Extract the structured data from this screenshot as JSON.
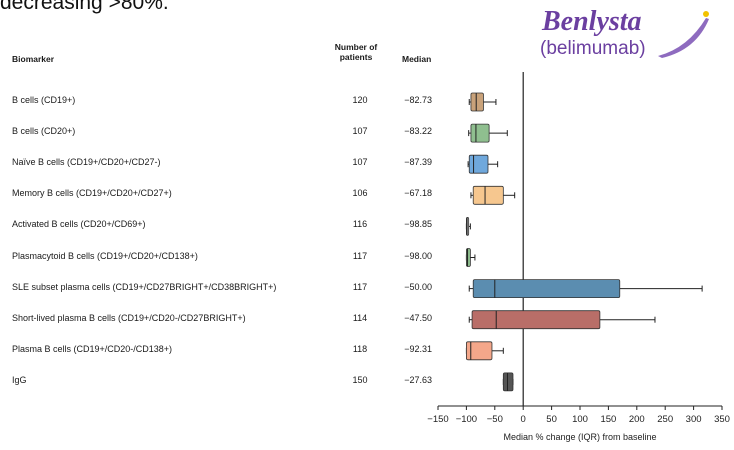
{
  "heading": "decreasing >80%.",
  "logo": {
    "brand": "Benlysta",
    "generic": "(belimumab)",
    "color": "#6b3fa0"
  },
  "table_headers": {
    "biomarker": "Biomarker",
    "n": "Number of patients",
    "median": "Median"
  },
  "chart_data": {
    "type": "box",
    "xlabel": "Median % change (IQR) from baseline",
    "xlim": [
      -150,
      350
    ],
    "xticks": [
      -150,
      -100,
      -50,
      0,
      50,
      100,
      150,
      200,
      250,
      300,
      350
    ],
    "reference_line": 0,
    "rows": [
      {
        "biomarker": "B cells (CD19+)",
        "n": "120",
        "median_label": "−82.73",
        "median": -82.73,
        "q1": -92,
        "q3": -70,
        "whisker_lo": -95,
        "whisker_hi": -48,
        "color": "#c9a27a"
      },
      {
        "biomarker": "B cells (CD20+)",
        "n": "107",
        "median_label": "−83.22",
        "median": -83.22,
        "q1": -92,
        "q3": -60,
        "whisker_lo": -96,
        "whisker_hi": -28,
        "color": "#8fbf8f"
      },
      {
        "biomarker": "Naïve B cells (CD19+/CD20+/CD27-)",
        "n": "107",
        "median_label": "−87.39",
        "median": -87.39,
        "q1": -95,
        "q3": -62,
        "whisker_lo": -97,
        "whisker_hi": -45,
        "color": "#6fa8dc"
      },
      {
        "biomarker": "Memory B cells (CD19+/CD20+/CD27+)",
        "n": "106",
        "median_label": "−67.18",
        "median": -67.18,
        "q1": -88,
        "q3": -35,
        "whisker_lo": -92,
        "whisker_hi": -15,
        "color": "#f6c78f"
      },
      {
        "biomarker": "Activated B cells (CD20+/CD69+)",
        "n": "116",
        "median_label": "−98.85",
        "median": -98.85,
        "q1": -100,
        "q3": -96,
        "whisker_lo": -100,
        "whisker_hi": -93,
        "color": "#cccccc"
      },
      {
        "biomarker": "Plasmacytoid B cells (CD19+/CD20+/CD138+)",
        "n": "117",
        "median_label": "−98.00",
        "median": -98.0,
        "q1": -100,
        "q3": -93,
        "whisker_lo": -100,
        "whisker_hi": -85,
        "color": "#8fbf8f"
      },
      {
        "biomarker": "SLE subset plasma cells (CD19+/CD27BRIGHT+/CD38BRIGHT+)",
        "n": "117",
        "median_label": "−50.00",
        "median": -50.0,
        "q1": -88,
        "q3": 170,
        "whisker_lo": -95,
        "whisker_hi": 315,
        "color": "#5b8db0"
      },
      {
        "biomarker": "Short-lived plasma B cells (CD19+/CD20-/CD27BRIGHT+)",
        "n": "114",
        "median_label": "−47.50",
        "median": -47.5,
        "q1": -90,
        "q3": 135,
        "whisker_lo": -95,
        "whisker_hi": 232,
        "color": "#b96e68"
      },
      {
        "biomarker": "Plasma B cells (CD19+/CD20-/CD138+)",
        "n": "118",
        "median_label": "−92.31",
        "median": -92.31,
        "q1": -100,
        "q3": -55,
        "whisker_lo": -100,
        "whisker_hi": -35,
        "color": "#f4a78a"
      },
      {
        "biomarker": "IgG",
        "n": "150",
        "median_label": "−27.63",
        "median": -27.63,
        "q1": -35,
        "q3": -18,
        "whisker_lo": -35,
        "whisker_hi": -18,
        "color": "#555555"
      }
    ]
  }
}
